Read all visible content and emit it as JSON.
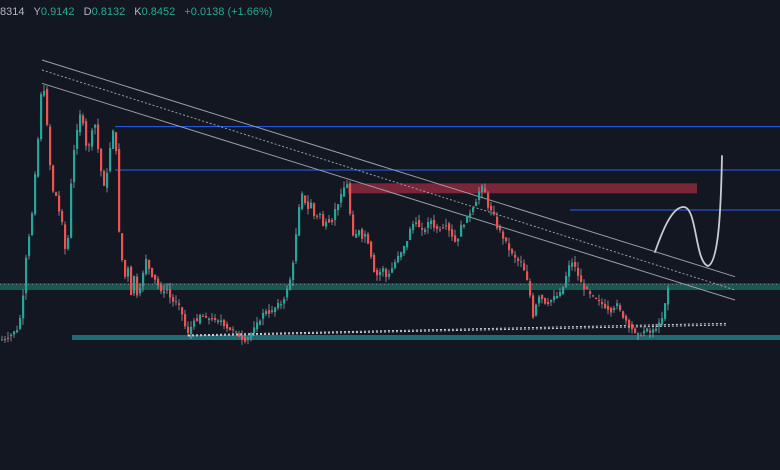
{
  "ohlc_legend": {
    "open_value": "8314",
    "high_label": "Y",
    "high_value": "0.9142",
    "low_label": "D",
    "low_value": "0.8132",
    "close_label": "K",
    "close_value": "0.8452",
    "change": "+0.0138 (+1.66%)"
  },
  "colors": {
    "background": "#131722",
    "bullish": "#26a69a",
    "bearish": "#ef5350",
    "wick": "#c4c6cc",
    "resistance_line": "#2962ff",
    "support_zone": "#1e6b73",
    "supply_zone": "#8c2a3c",
    "trendline": "#9a9ea8",
    "mid_zone": "#1b5e57",
    "sketch": "#c9ccd3"
  },
  "chart_data": {
    "type": "candlestick",
    "title": "",
    "xlabel": "",
    "ylabel": "",
    "ylim": [
      0.8,
      1.7
    ],
    "path": [
      [
        0,
        0.86
      ],
      [
        6,
        0.87
      ],
      [
        12,
        0.88
      ],
      [
        18,
        0.9
      ],
      [
        22,
        1.0
      ],
      [
        26,
        1.15
      ],
      [
        30,
        1.2
      ],
      [
        34,
        1.35
      ],
      [
        38,
        1.5
      ],
      [
        41,
        1.64
      ],
      [
        44,
        1.6
      ],
      [
        47,
        1.45
      ],
      [
        50,
        1.35
      ],
      [
        53,
        1.28
      ],
      [
        56,
        1.3
      ],
      [
        59,
        1.22
      ],
      [
        62,
        1.2
      ],
      [
        65,
        1.1
      ],
      [
        68,
        1.2
      ],
      [
        71,
        1.4
      ],
      [
        74,
        1.45
      ],
      [
        77,
        1.5
      ],
      [
        80,
        1.55
      ],
      [
        83,
        1.5
      ],
      [
        86,
        1.42
      ],
      [
        89,
        1.45
      ],
      [
        92,
        1.52
      ],
      [
        95,
        1.5
      ],
      [
        98,
        1.4
      ],
      [
        101,
        1.35
      ],
      [
        104,
        1.3
      ],
      [
        107,
        1.4
      ],
      [
        110,
        1.45
      ],
      [
        113,
        1.5
      ],
      [
        116,
        1.4
      ],
      [
        118,
        1.18
      ],
      [
        121,
        1.1
      ],
      [
        124,
        1.05
      ],
      [
        127,
        1.08
      ],
      [
        130,
        1.0
      ],
      [
        133,
        1.05
      ],
      [
        136,
        1.0
      ],
      [
        140,
        1.03
      ],
      [
        145,
        1.1
      ],
      [
        150,
        1.06
      ],
      [
        155,
        1.04
      ],
      [
        160,
        1.0
      ],
      [
        165,
        1.02
      ],
      [
        170,
        0.98
      ],
      [
        175,
        0.97
      ],
      [
        180,
        0.95
      ],
      [
        184,
        0.9
      ],
      [
        188,
        0.87
      ],
      [
        192,
        0.93
      ],
      [
        196,
        0.91
      ],
      [
        200,
        0.94
      ],
      [
        205,
        0.92
      ],
      [
        210,
        0.93
      ],
      [
        215,
        0.91
      ],
      [
        220,
        0.92
      ],
      [
        225,
        0.9
      ],
      [
        230,
        0.89
      ],
      [
        235,
        0.88
      ],
      [
        240,
        0.87
      ],
      [
        245,
        0.86
      ],
      [
        250,
        0.88
      ],
      [
        255,
        0.9
      ],
      [
        260,
        0.93
      ],
      [
        265,
        0.95
      ],
      [
        270,
        0.94
      ],
      [
        275,
        0.96
      ],
      [
        280,
        0.97
      ],
      [
        285,
        1.0
      ],
      [
        290,
        1.05
      ],
      [
        293,
        1.12
      ],
      [
        296,
        1.2
      ],
      [
        299,
        1.28
      ],
      [
        302,
        1.3
      ],
      [
        306,
        1.25
      ],
      [
        310,
        1.27
      ],
      [
        314,
        1.22
      ],
      [
        318,
        1.25
      ],
      [
        322,
        1.2
      ],
      [
        326,
        1.23
      ],
      [
        330,
        1.21
      ],
      [
        334,
        1.25
      ],
      [
        338,
        1.28
      ],
      [
        342,
        1.3
      ],
      [
        345,
        1.35
      ],
      [
        347,
        1.31
      ],
      [
        350,
        1.2
      ],
      [
        353,
        1.15
      ],
      [
        357,
        1.2
      ],
      [
        361,
        1.17
      ],
      [
        365,
        1.18
      ],
      [
        369,
        1.13
      ],
      [
        373,
        1.07
      ],
      [
        377,
        1.05
      ],
      [
        381,
        1.08
      ],
      [
        385,
        1.05
      ],
      [
        390,
        1.07
      ],
      [
        395,
        1.1
      ],
      [
        400,
        1.12
      ],
      [
        405,
        1.15
      ],
      [
        410,
        1.2
      ],
      [
        415,
        1.22
      ],
      [
        420,
        1.18
      ],
      [
        425,
        1.2
      ],
      [
        430,
        1.22
      ],
      [
        435,
        1.19
      ],
      [
        440,
        1.2
      ],
      [
        445,
        1.21
      ],
      [
        450,
        1.18
      ],
      [
        455,
        1.15
      ],
      [
        460,
        1.2
      ],
      [
        465,
        1.22
      ],
      [
        470,
        1.25
      ],
      [
        475,
        1.28
      ],
      [
        480,
        1.32
      ],
      [
        484,
        1.3
      ],
      [
        488,
        1.25
      ],
      [
        492,
        1.24
      ],
      [
        496,
        1.2
      ],
      [
        500,
        1.18
      ],
      [
        505,
        1.15
      ],
      [
        510,
        1.12
      ],
      [
        515,
        1.1
      ],
      [
        520,
        1.09
      ],
      [
        525,
        1.05
      ],
      [
        530,
        0.98
      ],
      [
        533,
        0.91
      ],
      [
        536,
        1.0
      ],
      [
        540,
        0.99
      ],
      [
        545,
        0.97
      ],
      [
        550,
        0.98
      ],
      [
        555,
        0.99
      ],
      [
        560,
        1.0
      ],
      [
        565,
        1.05
      ],
      [
        570,
        1.1
      ],
      [
        575,
        1.07
      ],
      [
        580,
        1.03
      ],
      [
        585,
        1.01
      ],
      [
        590,
        0.99
      ],
      [
        595,
        0.98
      ],
      [
        600,
        0.97
      ],
      [
        605,
        0.96
      ],
      [
        610,
        0.95
      ],
      [
        615,
        0.97
      ],
      [
        620,
        0.94
      ],
      [
        625,
        0.92
      ],
      [
        630,
        0.9
      ],
      [
        635,
        0.87
      ],
      [
        640,
        0.88
      ],
      [
        645,
        0.89
      ],
      [
        650,
        0.88
      ],
      [
        655,
        0.9
      ],
      [
        660,
        0.91
      ],
      [
        663,
        0.95
      ],
      [
        666,
        1.0
      ],
      [
        668,
        1.03
      ]
    ],
    "annotations": {
      "resistance_levels": [
        1.5,
        1.37,
        1.25
      ],
      "resistance_start": [
        115,
        115,
        570
      ],
      "mid_zone": [
        1.03,
        1.01
      ],
      "support_zone": [
        0.875,
        0.86
      ],
      "supply_zone": [
        1.33,
        1.3
      ],
      "supply_zone_x": [
        348,
        697
      ],
      "descending_trendlines": [
        [
          [
            42,
            1.63
          ],
          [
            735,
            0.98
          ]
        ],
        [
          [
            42,
            1.7
          ],
          [
            735,
            1.05
          ]
        ],
        [
          [
            42,
            1.67
          ],
          [
            735,
            1.01
          ]
        ]
      ],
      "rising_support_lines": [
        [
          [
            188,
            0.875
          ],
          [
            727,
            0.91
          ]
        ],
        [
          [
            188,
            0.872
          ],
          [
            727,
            0.905
          ]
        ]
      ]
    }
  }
}
